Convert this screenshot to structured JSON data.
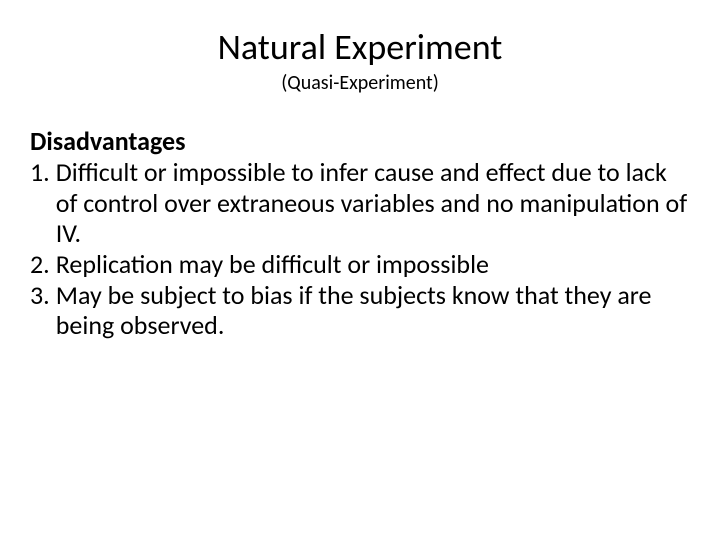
{
  "slide": {
    "title": "Natural Experiment",
    "subtitle": "(Quasi-Experiment)",
    "section_heading": "Disadvantages",
    "items": [
      {
        "number": "1.",
        "text": "Difficult or impossible to infer cause and effect due to lack of control over extraneous variables and no manipulation of IV."
      },
      {
        "number": "2.",
        "text": "Replication may be difficult or impossible"
      },
      {
        "number": "3.",
        "text": "May be subject to bias if the subjects know that they are being observed."
      }
    ]
  },
  "colors": {
    "background": "#ffffff",
    "text": "#000000"
  },
  "typography": {
    "title_fontsize": 36,
    "subtitle_fontsize": 20,
    "heading_fontsize": 26,
    "body_fontsize": 26,
    "font_family": "Calibri"
  }
}
